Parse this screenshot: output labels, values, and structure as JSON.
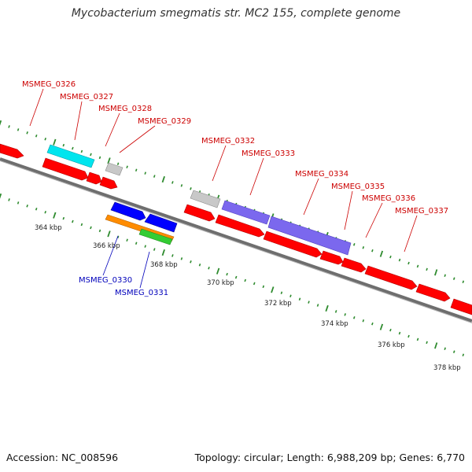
{
  "title": "Mycobacterium smegmatis str. MC2 155, complete genome",
  "footer": {
    "accession": "Accession: NC_008596",
    "summary": "Topology: circular; Length: 6,988,209 bp; Genes: 6,770"
  },
  "scale": {
    "labels": [
      "364 kbp",
      "366 kbp",
      "368 kbp",
      "370 kbp",
      "372 kbp",
      "374 kbp",
      "376 kbp",
      "378 kbp"
    ]
  },
  "genes_top": [
    "MSMEG_0326",
    "MSMEG_0327",
    "MSMEG_0328",
    "MSMEG_0329",
    "MSMEG_0332",
    "MSMEG_0333",
    "MSMEG_0334",
    "MSMEG_0335",
    "MSMEG_0336",
    "MSMEG_0337"
  ],
  "genes_bottom": [
    "MSMEG_0330",
    "MSMEG_0331"
  ],
  "colors": {
    "cds": "#ff0000",
    "cds_cyan": "#00e5ee",
    "cds_gray": "#c8c8c8",
    "cds_purple": "#7b68ee",
    "cds_blue": "#0000ff",
    "cds_orange": "#ff8c00",
    "cds_green": "#33cc33",
    "backbone": "#777777",
    "ticks": "#2e8b2e",
    "label_top": "#cc0000",
    "label_bottom": "#0000bb"
  }
}
